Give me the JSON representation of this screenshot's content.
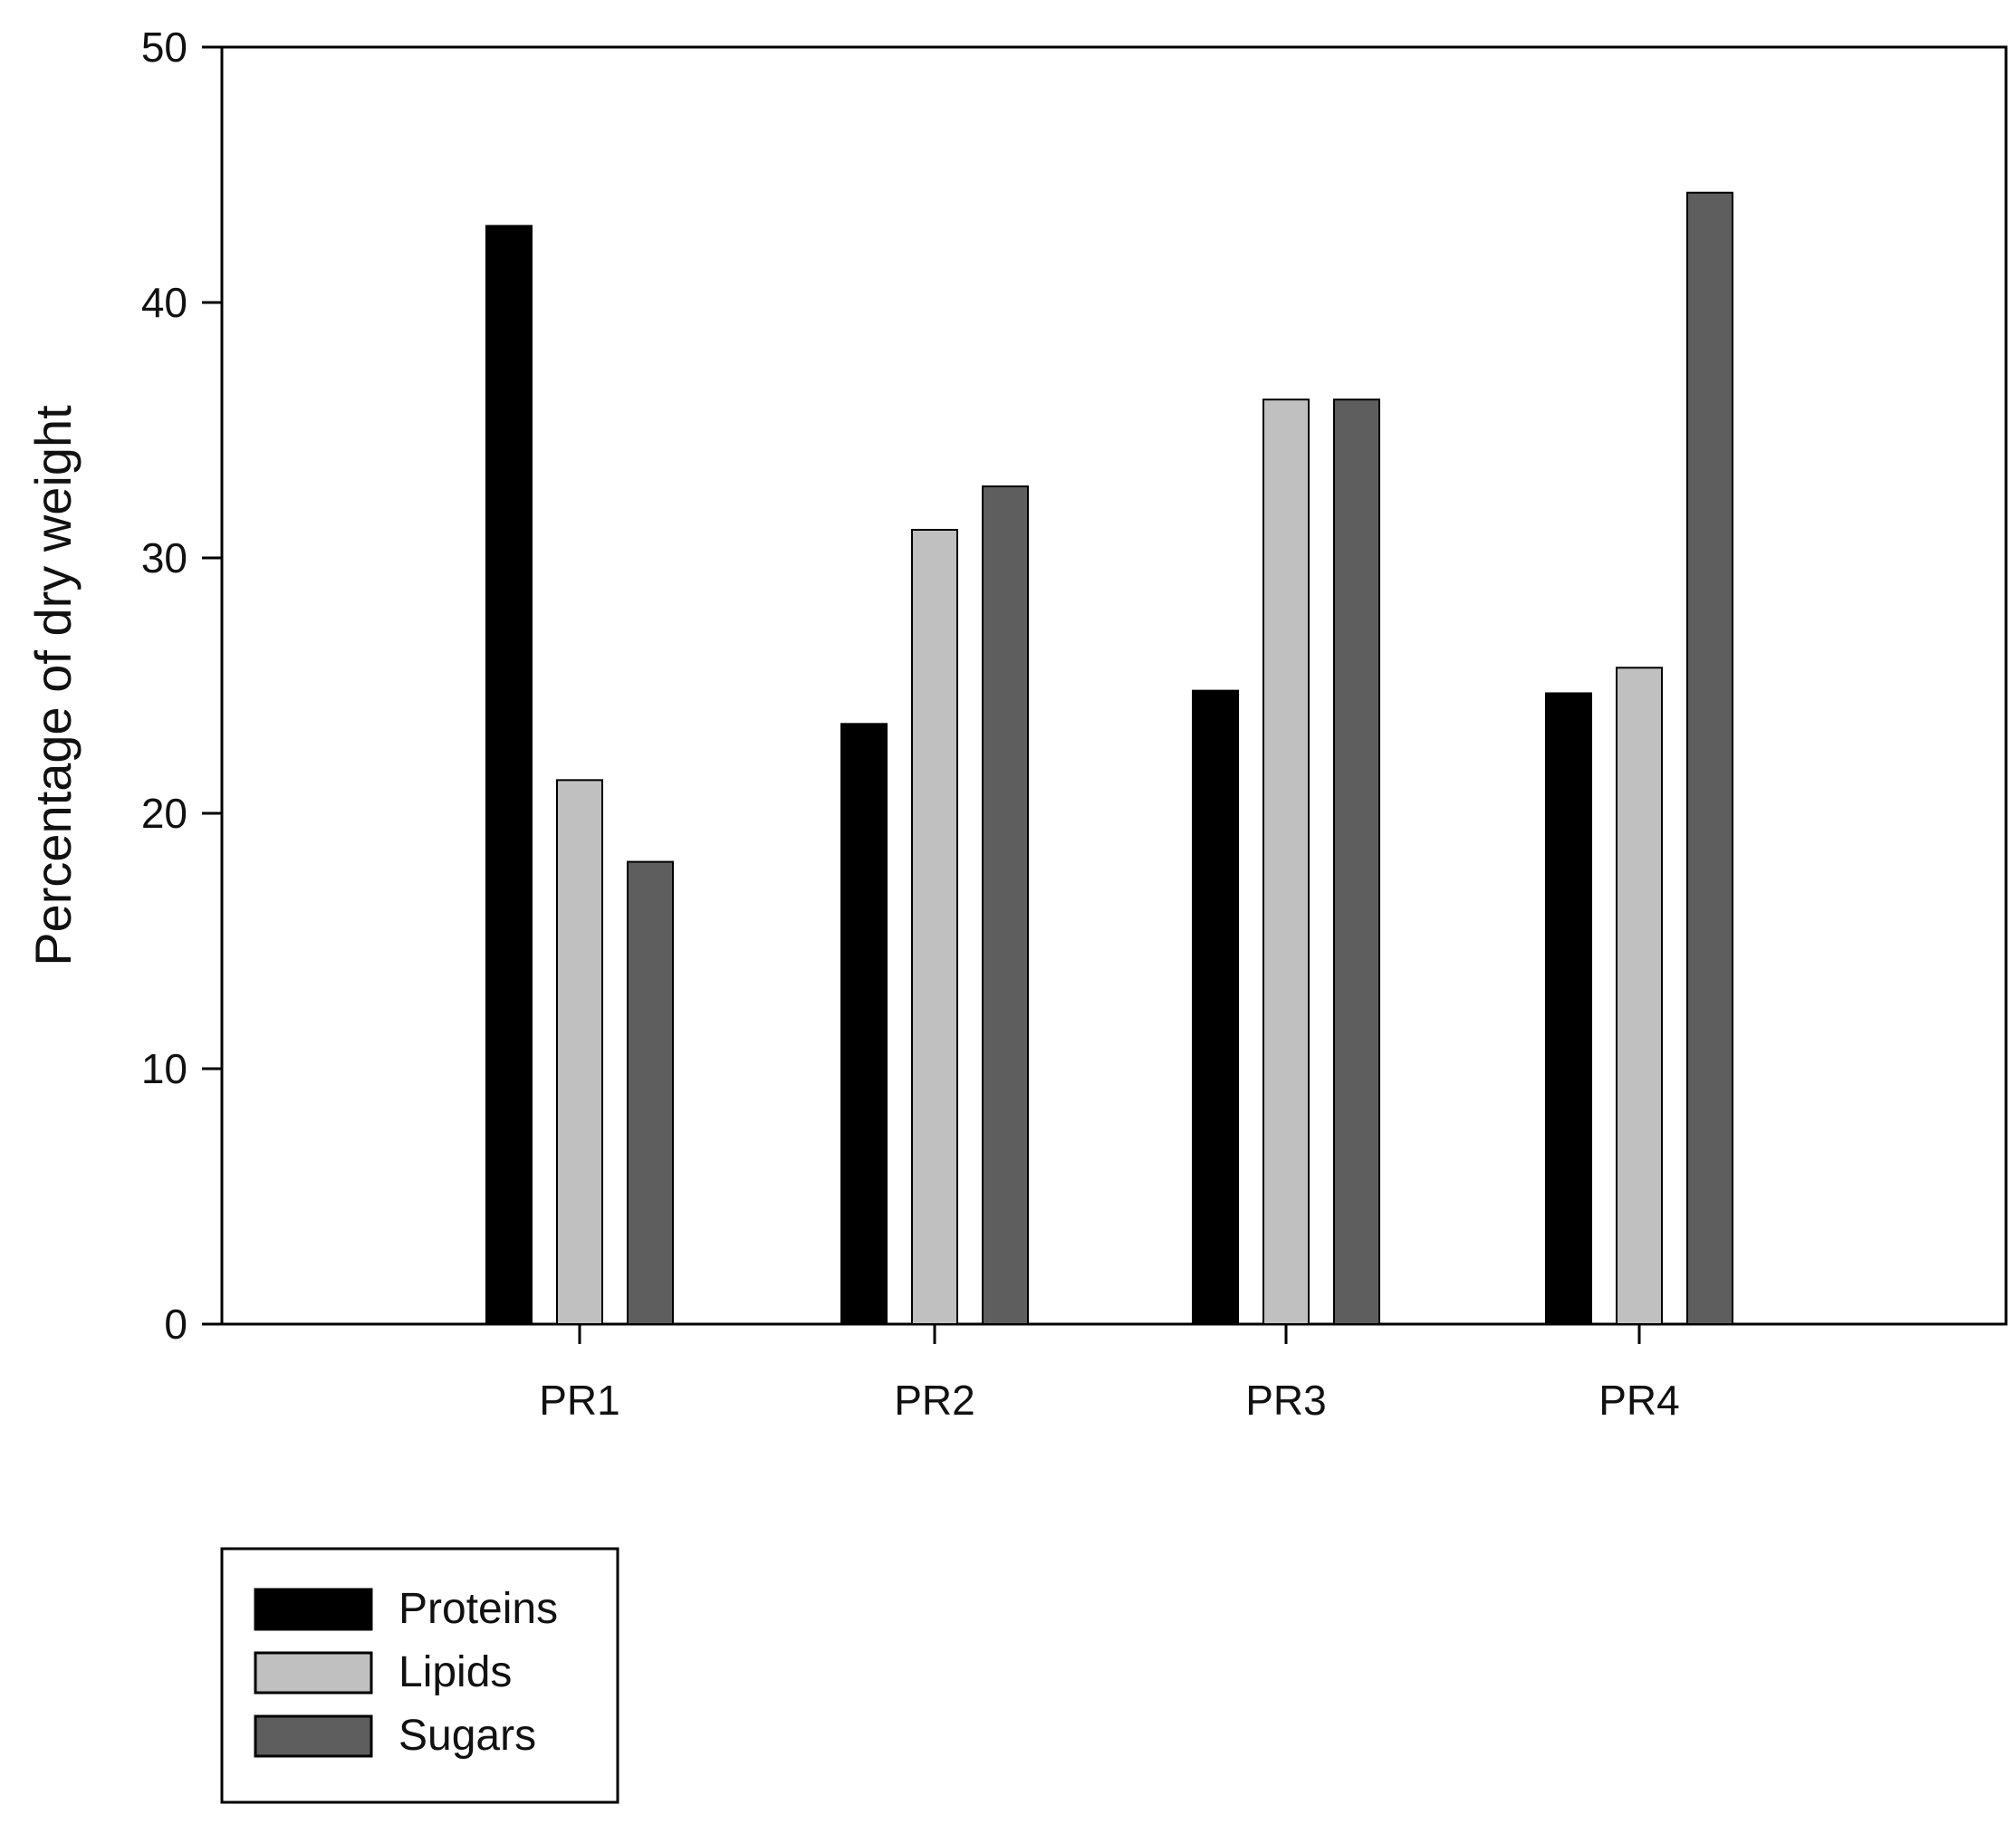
{
  "chart_data": {
    "type": "bar",
    "title": "",
    "xlabel": "",
    "ylabel": "Percentage of dry weight",
    "ylim": [
      0,
      50
    ],
    "yticks": [
      0,
      10,
      20,
      30,
      40,
      50
    ],
    "grid": false,
    "legend_position": "bottom-left, below plot",
    "categories": [
      "PR1",
      "PR2",
      "PR3",
      "PR4"
    ],
    "series": [
      {
        "name": "Proteins",
        "color": "#000000",
        "values": [
          43.0,
          23.5,
          24.8,
          24.7
        ]
      },
      {
        "name": "Lipids",
        "color": "#c0c0c0",
        "values": [
          21.3,
          31.1,
          36.2,
          25.7
        ]
      },
      {
        "name": "Sugars",
        "color": "#5e5e5e",
        "values": [
          18.1,
          32.8,
          36.2,
          44.3
        ]
      }
    ]
  }
}
